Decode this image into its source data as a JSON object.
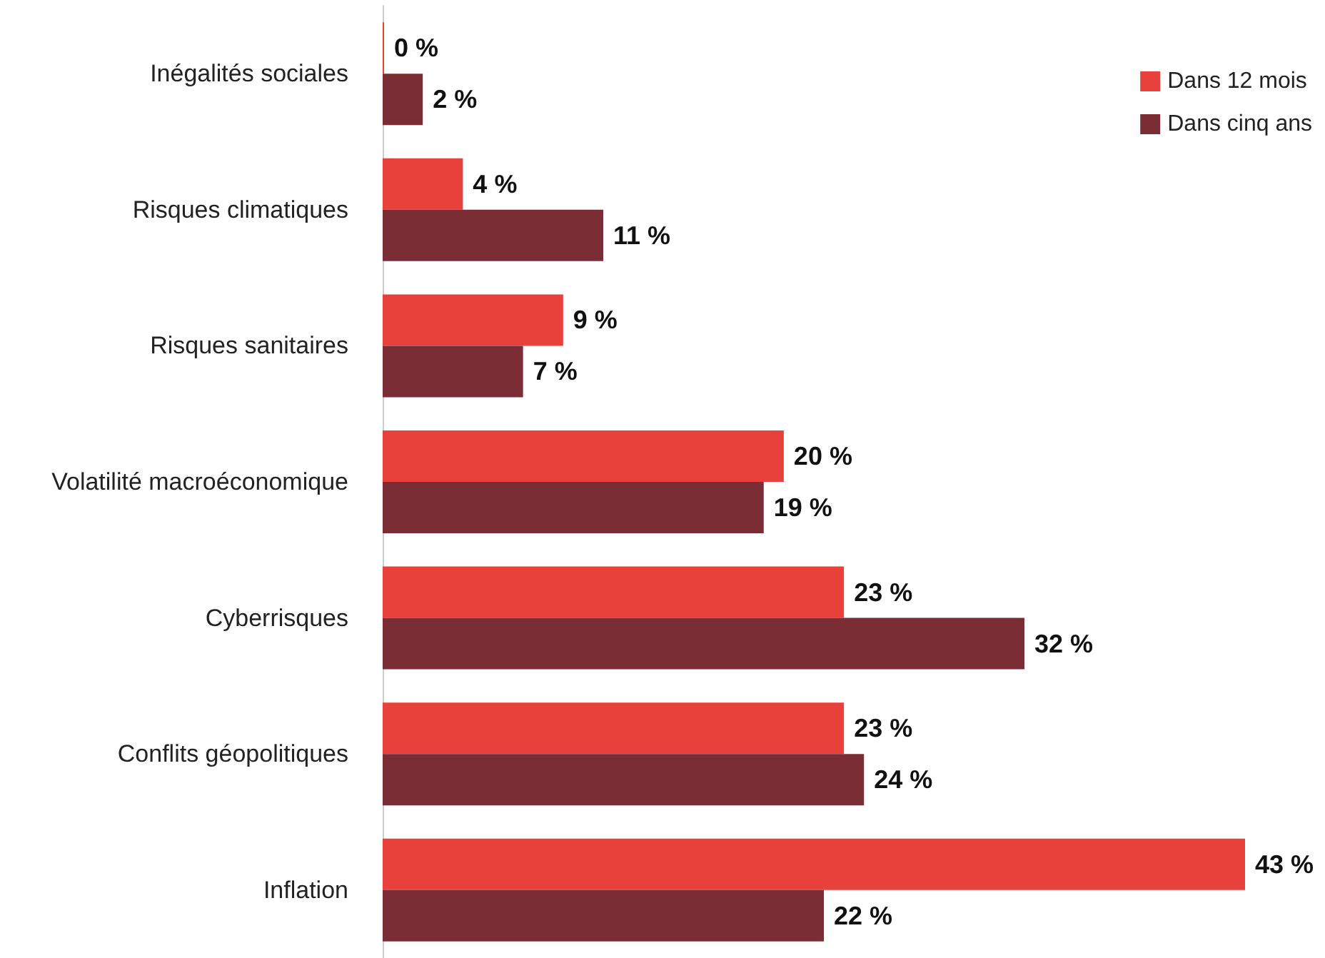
{
  "chart_data": {
    "type": "bar",
    "orientation": "horizontal",
    "categories": [
      "Inégalités sociales",
      "Risques climatiques",
      "Risques sanitaires",
      "Volatilité macroéconomique",
      "Cyberrisques",
      "Conflits géopolitiques",
      "Inflation"
    ],
    "series": [
      {
        "name": "Dans 12 mois",
        "color": "#e8403a",
        "values": [
          0,
          4,
          9,
          20,
          23,
          23,
          43
        ],
        "value_labels": [
          "0 %",
          "4 %",
          "9 %",
          "20 %",
          "23 %",
          "23 %",
          "43 %"
        ]
      },
      {
        "name": "Dans cinq ans",
        "color": "#7a2d34",
        "values": [
          2,
          11,
          7,
          19,
          32,
          24,
          22
        ],
        "value_labels": [
          "2 %",
          "11 %",
          "7 %",
          "19 %",
          "32 %",
          "24 %",
          "22 %"
        ]
      }
    ],
    "legend": "top right",
    "grid": false
  }
}
